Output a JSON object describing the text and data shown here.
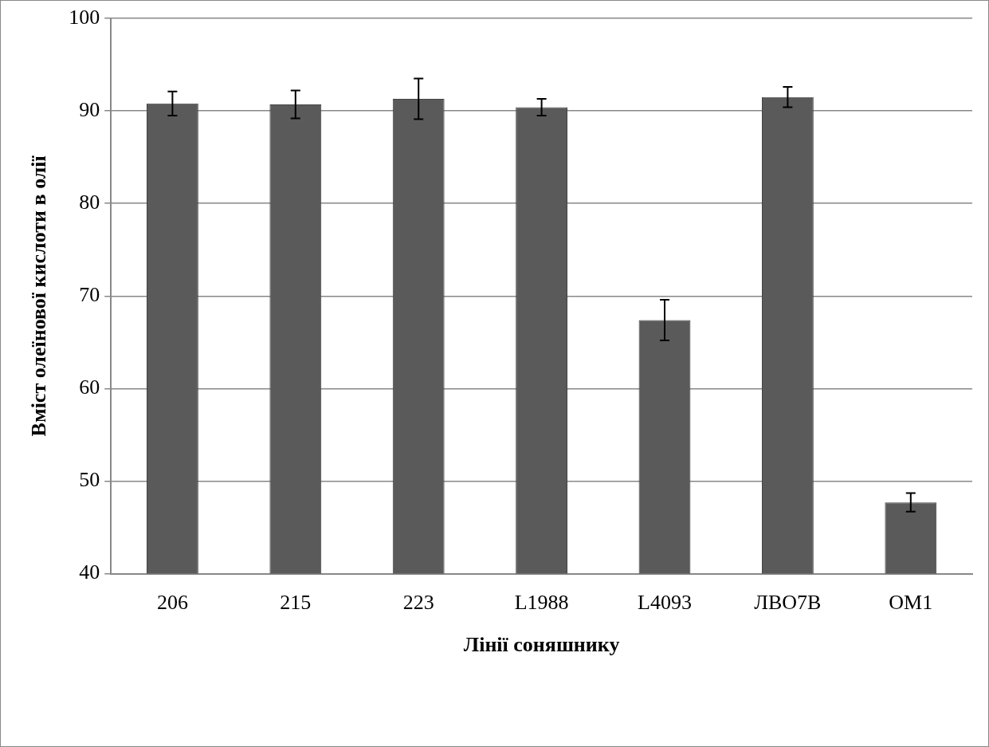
{
  "chart_data": {
    "type": "bar",
    "xlabel": "Лінії соняшнику",
    "ylabel": "Вміст олеїнової кислоти в олії",
    "categories": [
      "206",
      "215",
      "223",
      "L1988",
      "L4093",
      "ЛВО7В",
      "OM1"
    ],
    "values": [
      90.8,
      90.7,
      91.3,
      90.4,
      67.4,
      91.5,
      47.7
    ],
    "errors": [
      1.3,
      1.5,
      2.2,
      0.9,
      2.2,
      1.1,
      1
    ],
    "color": "#5a5a5a",
    "ylim": [
      40,
      100
    ],
    "yticks": [
      40,
      50,
      60,
      70,
      80,
      90,
      100
    ],
    "grid": "y",
    "legend": false
  }
}
